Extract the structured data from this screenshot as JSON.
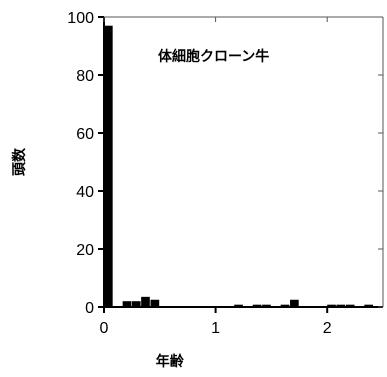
{
  "chart_data": {
    "type": "bar",
    "annotation": "体細胞クローン牛",
    "xlabel": "年齢",
    "ylabel": "頭数",
    "xlim": [
      0,
      2.5
    ],
    "ylim": [
      0,
      100
    ],
    "xticks": [
      0,
      1,
      2
    ],
    "yticks": [
      0,
      20,
      40,
      60,
      80,
      100
    ],
    "grid": false,
    "bin_width": 0.083,
    "bars": [
      {
        "x": 0.0,
        "value": 97
      },
      {
        "x": 0.167,
        "value": 2
      },
      {
        "x": 0.25,
        "value": 2
      },
      {
        "x": 0.333,
        "value": 3.5
      },
      {
        "x": 0.417,
        "value": 2.5
      },
      {
        "x": 1.167,
        "value": 0.8
      },
      {
        "x": 1.333,
        "value": 0.8
      },
      {
        "x": 1.417,
        "value": 0.8
      },
      {
        "x": 1.583,
        "value": 0.8
      },
      {
        "x": 1.667,
        "value": 2.5
      },
      {
        "x": 2.0,
        "value": 0.8
      },
      {
        "x": 2.083,
        "value": 0.8
      },
      {
        "x": 2.167,
        "value": 0.8
      },
      {
        "x": 2.333,
        "value": 0.8
      }
    ]
  }
}
